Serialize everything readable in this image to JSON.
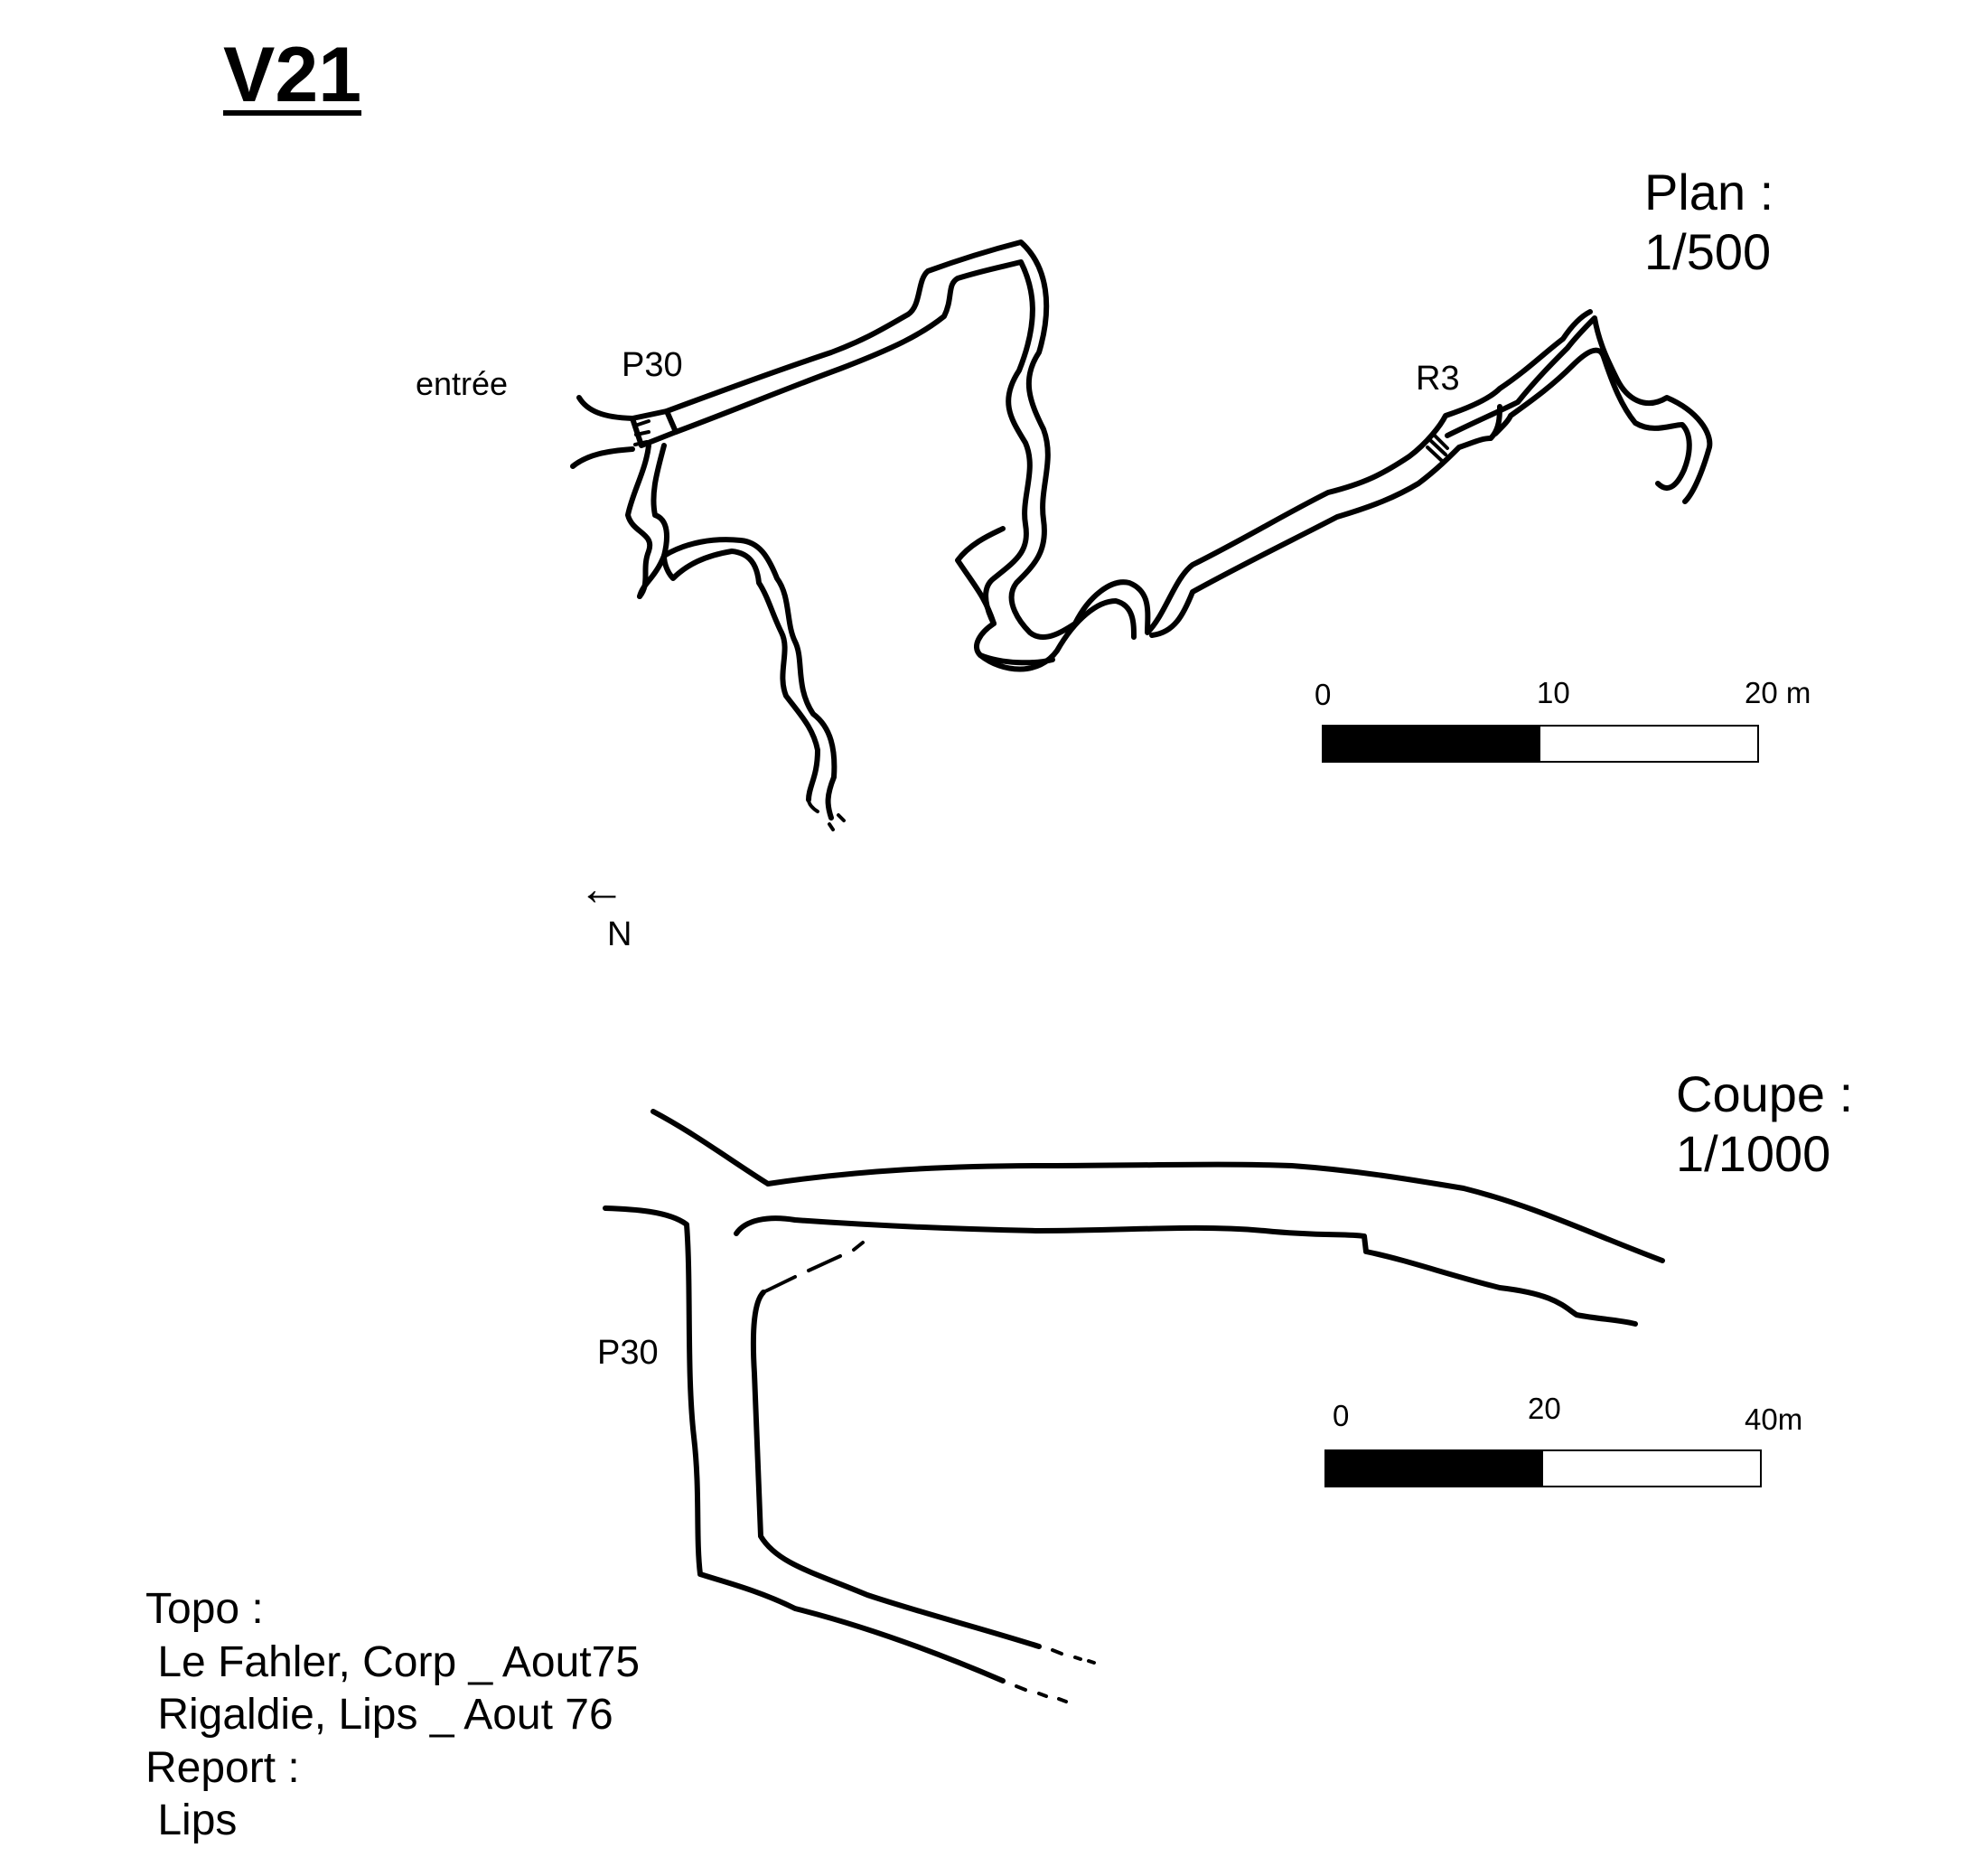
{
  "title": "V21",
  "plan": {
    "scale_label": "Plan :\n1/500",
    "labels": {
      "entrance": "entrée",
      "pit": "P30",
      "step": "R3"
    },
    "scale_bar": {
      "ticks": [
        "0",
        "10",
        "20 m"
      ],
      "fill_fraction": 0.5
    },
    "north_arrow": {
      "symbol": "←",
      "label": "N"
    }
  },
  "section": {
    "scale_label": "Coupe :\n1/1000",
    "labels": {
      "pit": "P30"
    },
    "scale_bar": {
      "ticks": [
        "0",
        "20",
        "40m"
      ],
      "fill_fraction": 0.5
    }
  },
  "credits": {
    "lines": [
      "Topo :",
      " Le Fahler, Corp _ Aout75",
      " Rigaldie, Lips _ Aout 76",
      "Report :",
      " Lips"
    ]
  }
}
